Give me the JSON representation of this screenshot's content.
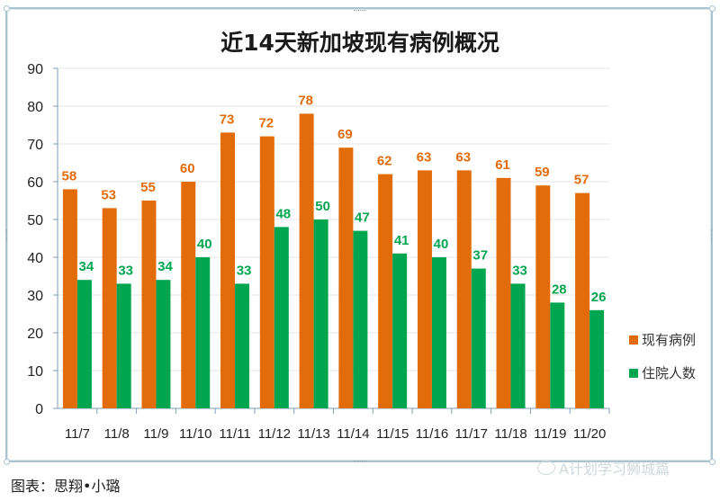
{
  "chart_data": {
    "type": "bar",
    "title": "近14天新加坡现有病例概况",
    "xlabel": "",
    "ylabel": "",
    "ylim": [
      0,
      90
    ],
    "yticks": [
      0,
      10,
      20,
      30,
      40,
      50,
      60,
      70,
      80,
      90
    ],
    "grid": true,
    "legend_position": "right",
    "categories": [
      "11/7",
      "11/8",
      "11/9",
      "11/10",
      "11/11",
      "11/12",
      "11/13",
      "11/14",
      "11/15",
      "11/16",
      "11/17",
      "11/18",
      "11/19",
      "11/20"
    ],
    "series": [
      {
        "name": "现有病例",
        "color": "#e36c0a",
        "values": [
          58,
          53,
          55,
          60,
          73,
          72,
          78,
          69,
          62,
          63,
          63,
          61,
          59,
          57
        ]
      },
      {
        "name": "住院人数",
        "color": "#00a550",
        "values": [
          34,
          33,
          34,
          40,
          33,
          48,
          50,
          47,
          41,
          40,
          37,
          33,
          28,
          26
        ]
      }
    ]
  },
  "caption": "图表：思翔•小璐",
  "watermark": "A计划学习狮城篇",
  "colors": {
    "frame": "#a9c3cf",
    "grid": "#e6e6e6",
    "axis": "#7f9db9"
  }
}
